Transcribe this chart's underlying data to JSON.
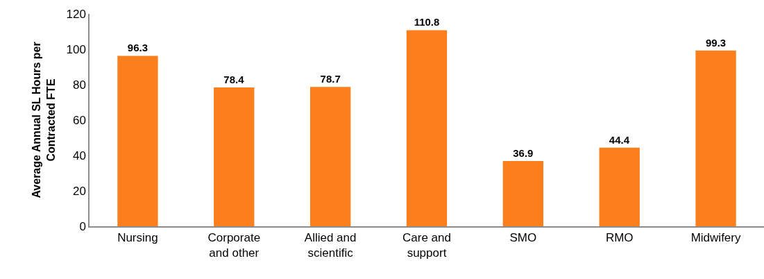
{
  "chart_data": {
    "type": "bar",
    "ylabel": "Average Annual SL Hours per Contracted FTE",
    "categories": [
      "Nursing",
      "Corporate and other",
      "Allied and scientific",
      "Care and support",
      "SMO",
      "RMO",
      "Midwifery"
    ],
    "values": [
      96.3,
      78.4,
      78.7,
      110.8,
      36.9,
      44.4,
      99.3
    ],
    "color": "#fd7e1d",
    "data_labels": true,
    "ylim": [
      0,
      120
    ],
    "yticks": [
      0,
      20,
      40,
      60,
      80,
      100,
      120
    ],
    "grid": false,
    "legend": false
  }
}
